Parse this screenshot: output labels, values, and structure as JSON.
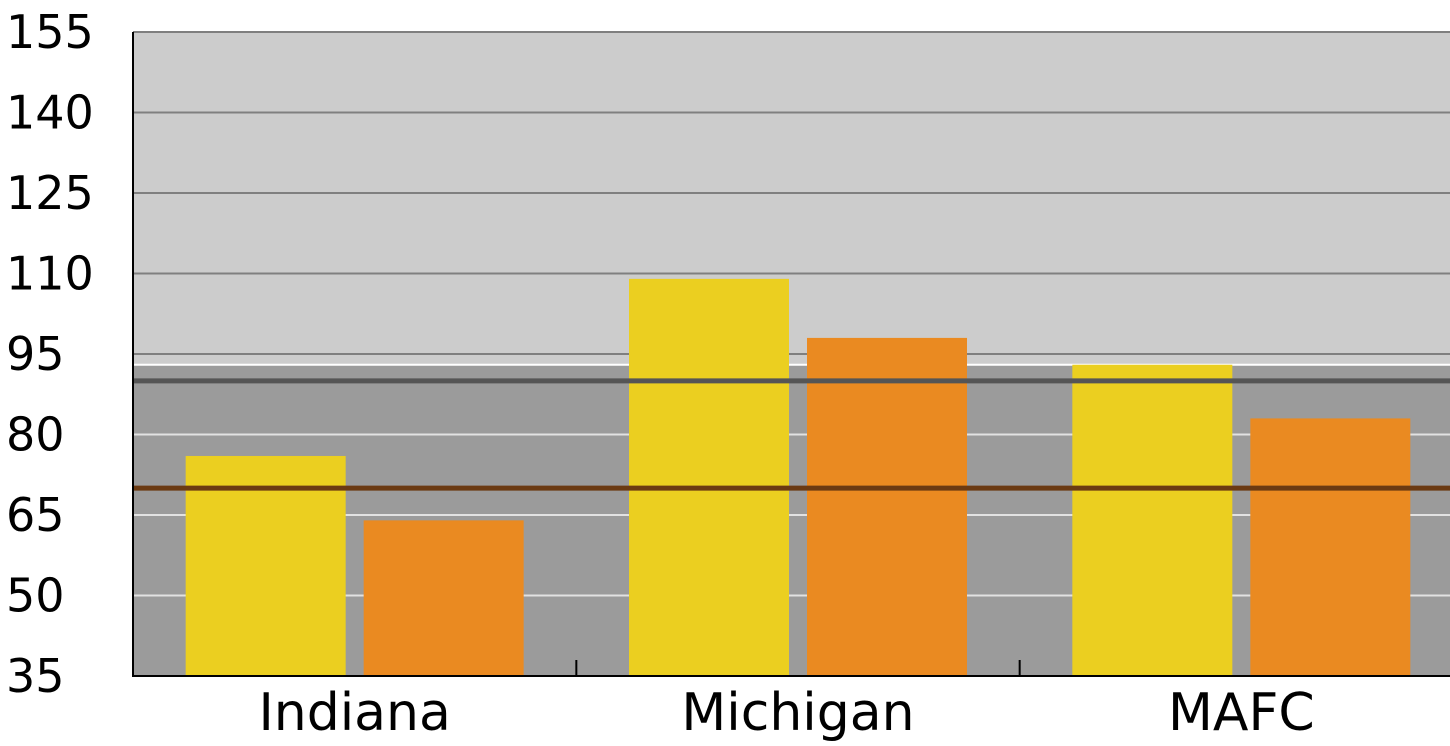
{
  "chart_data": {
    "type": "bar",
    "title": "",
    "xlabel": "",
    "ylabel": "",
    "ylim": [
      35,
      155
    ],
    "yticks": [
      35,
      50,
      65,
      80,
      95,
      110,
      125,
      140,
      155
    ],
    "categories": [
      "Indiana",
      "Michigan",
      "MAFC"
    ],
    "series": [
      {
        "values": [
          76,
          109,
          93
        ],
        "color": "#ebcf20"
      },
      {
        "values": [
          64,
          98,
          83
        ],
        "color": "#ea8a21"
      }
    ],
    "bands": [
      {
        "from": 35,
        "to": 93,
        "color": "#9b9b9b"
      },
      {
        "from": 93,
        "to": 155,
        "color": "#cccccc"
      }
    ],
    "reference_lines": [
      {
        "value": 90,
        "color": "#555555"
      },
      {
        "value": 70,
        "color": "#6b3a12"
      }
    ],
    "grid": true,
    "grid_color_upper": "#7f7f7f",
    "grid_color_lower": "#e2e2e2",
    "legend": "none"
  }
}
